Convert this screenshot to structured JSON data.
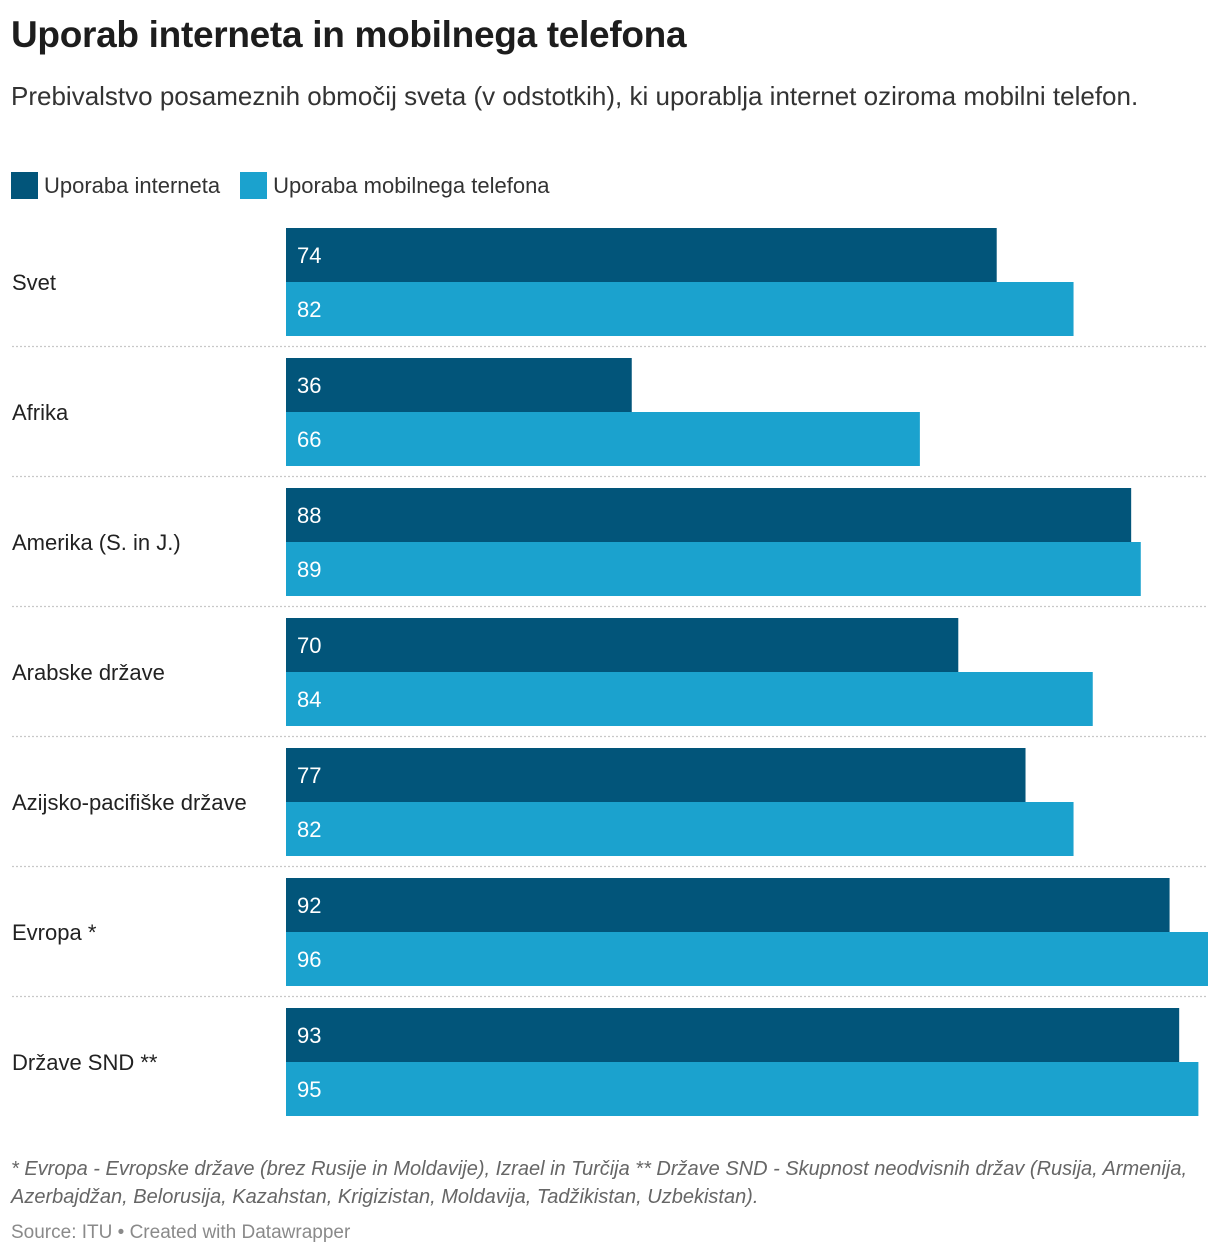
{
  "title": "Uporab interneta in mobilnega telefona",
  "subtitle": "Prebivalstvo posameznih območij sveta (v odstotkih), ki uporablja internet oziroma mobilni telefon.",
  "legend": [
    {
      "name": "Uporaba interneta",
      "color": "#02557a"
    },
    {
      "name": "Uporaba mobilnega telefona",
      "color": "#1ba2ce"
    }
  ],
  "chart_data": {
    "type": "bar",
    "orientation": "horizontal",
    "categories": [
      "Svet",
      "Afrika",
      "Amerika (S. in J.)",
      "Arabske države",
      "Azijsko-pacifiške države",
      "Evropa *",
      "Države SND **"
    ],
    "series": [
      {
        "name": "Uporaba interneta",
        "color": "#02557a",
        "values": [
          74,
          36,
          88,
          70,
          77,
          92,
          93
        ]
      },
      {
        "name": "Uporaba mobilnega telefona",
        "color": "#1ba2ce",
        "values": [
          82,
          66,
          89,
          84,
          82,
          96,
          95
        ]
      }
    ],
    "xlim": [
      0,
      96
    ],
    "grid": false,
    "legend_position": "top-left"
  },
  "notes": "* Evropa - Evropske države (brez Rusije in Moldavije), Izrael in Turčija ** Države SND - Skupnost neodvisnih držav (Rusija, Armenija, Azerbajdžan, Belorusija, Kazahstan, Krigizistan, Moldavija, Tadžikistan, Uzbekistan).",
  "source": "Source: ITU • Created with Datawrapper"
}
